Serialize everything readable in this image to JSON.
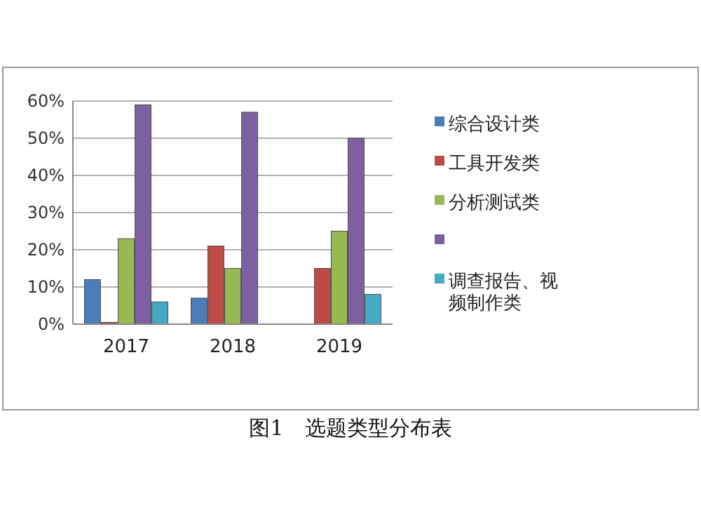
{
  "chart_data": {
    "type": "bar",
    "title": "图1　选题类型分布表",
    "categories": [
      "2017",
      "2018",
      "2019"
    ],
    "series": [
      {
        "name": "综合设计类",
        "color": "#4a7ebb",
        "values": [
          12,
          7,
          0
        ]
      },
      {
        "name": "工具开发类",
        "color": "#be4b48",
        "values": [
          0.5,
          21,
          15
        ]
      },
      {
        "name": "分析测试类",
        "color": "#98b954",
        "values": [
          23,
          15,
          25
        ]
      },
      {
        "color": "#7d60a0",
        "values": [
          59,
          57,
          50
        ]
      },
      {
        "name": "调查报告、视频制作类",
        "color": "#46aac5",
        "values": [
          6,
          0,
          8
        ]
      }
    ],
    "ylim": [
      0,
      60
    ],
    "yticks": [
      {
        "value": 0,
        "label": "0%"
      },
      {
        "value": 10,
        "label": "10%"
      },
      {
        "value": 20,
        "label": "20%"
      },
      {
        "value": 30,
        "label": "30%"
      },
      {
        "value": 40,
        "label": "40%"
      },
      {
        "value": 50,
        "label": "50%"
      },
      {
        "value": 60,
        "label": "60%"
      }
    ],
    "grid": "y",
    "legend": "right"
  }
}
